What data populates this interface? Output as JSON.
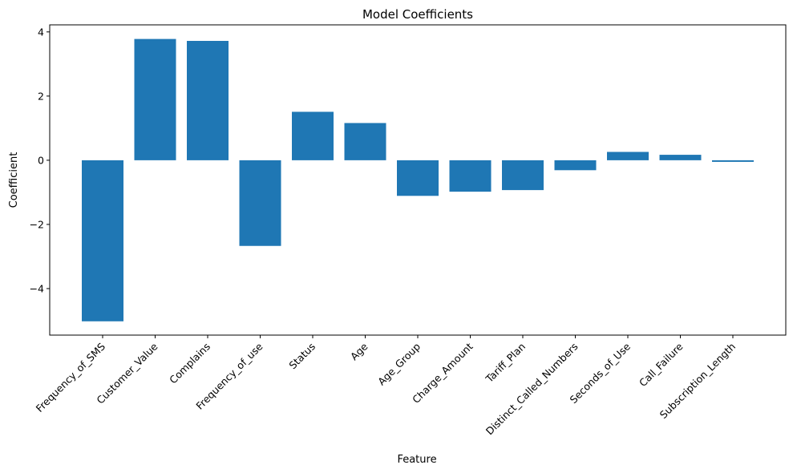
{
  "chart_data": {
    "type": "bar",
    "title": "Model Coefficients",
    "xlabel": "Feature",
    "ylabel": "Coefficient",
    "categories": [
      "Frequency_of_SMS",
      "Customer_Value",
      "Complains",
      "Frequency_of_use",
      "Status",
      "Age",
      "Age_Group",
      "Charge_Amount",
      "Tariff_Plan",
      "Distinct_Called_Numbers",
      "Seconds_of_Use",
      "Call_Failure",
      "Subscription_Length"
    ],
    "values": [
      -5.02,
      3.78,
      3.72,
      -2.67,
      1.51,
      1.16,
      -1.11,
      -0.98,
      -0.93,
      -0.31,
      0.26,
      0.17,
      -0.05
    ],
    "ylim": [
      -5.45,
      4.22
    ],
    "yticks": [
      -4,
      -2,
      0,
      2,
      4
    ],
    "ytick_labels": [
      "−4",
      "−2",
      "0",
      "2",
      "4"
    ],
    "grid": false,
    "bar_color": "#1f77b4"
  }
}
